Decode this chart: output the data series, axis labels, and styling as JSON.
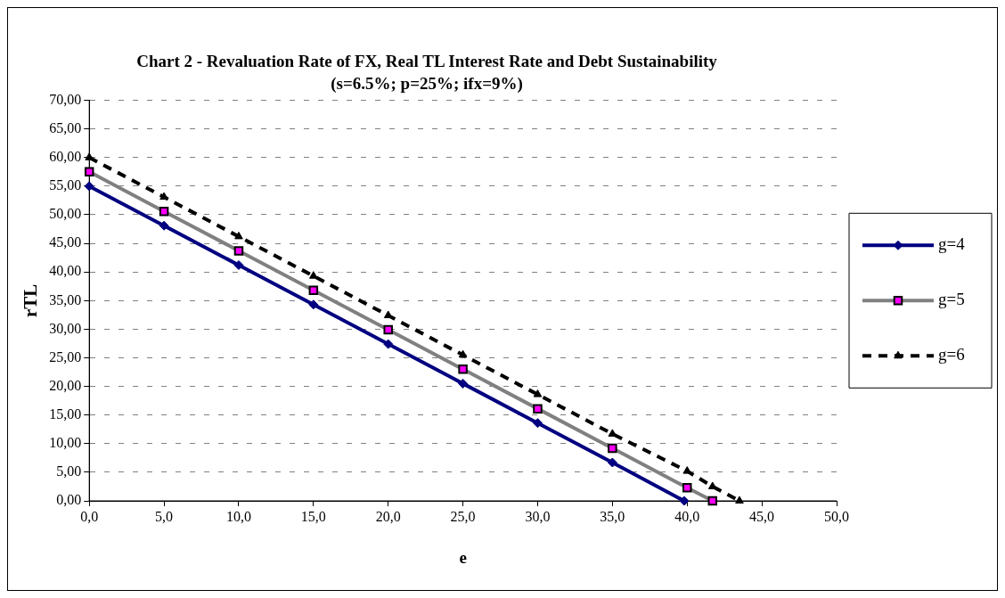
{
  "chart_data": {
    "type": "line",
    "title": "Chart 2 - Revaluation Rate of FX, Real TL Interest Rate and Debt Sustainability",
    "subtitle": "(s=6.5%; p=25%; ifx=9%)",
    "xlabel": "e",
    "ylabel": "rTL",
    "xlim": [
      0,
      50
    ],
    "xticks": [
      {
        "value": 0,
        "label": "0,0"
      },
      {
        "value": 5,
        "label": "5,0"
      },
      {
        "value": 10,
        "label": "10,0"
      },
      {
        "value": 15,
        "label": "15,0"
      },
      {
        "value": 20,
        "label": "20,0"
      },
      {
        "value": 25,
        "label": "25,0"
      },
      {
        "value": 30,
        "label": "30,0"
      },
      {
        "value": 35,
        "label": "35,0"
      },
      {
        "value": 40,
        "label": "40,0"
      },
      {
        "value": 45,
        "label": "45,0"
      },
      {
        "value": 50,
        "label": "50,0"
      }
    ],
    "ylim": [
      0,
      70
    ],
    "yticks": [
      {
        "value": 0,
        "label": "0,00"
      },
      {
        "value": 5,
        "label": "5,00"
      },
      {
        "value": 10,
        "label": "10,00"
      },
      {
        "value": 15,
        "label": "15,00"
      },
      {
        "value": 20,
        "label": "20,00"
      },
      {
        "value": 25,
        "label": "25,00"
      },
      {
        "value": 30,
        "label": "30,00"
      },
      {
        "value": 35,
        "label": "35,00"
      },
      {
        "value": 40,
        "label": "40,00"
      },
      {
        "value": 45,
        "label": "45,00"
      },
      {
        "value": 50,
        "label": "50,00"
      },
      {
        "value": 55,
        "label": "55,00"
      },
      {
        "value": 60,
        "label": "60,00"
      },
      {
        "value": 65,
        "label": "65,00"
      },
      {
        "value": 70,
        "label": "70,00"
      }
    ],
    "grid": "y",
    "legend": "right",
    "series": [
      {
        "name": "g=4",
        "color": "#000080",
        "marker": "diamond",
        "line_style": "solid",
        "x": [
          0,
          5,
          10,
          15,
          20,
          25,
          30,
          35,
          39.8
        ],
        "values": [
          55,
          48.1,
          41.2,
          34.3,
          27.4,
          20.5,
          13.6,
          6.7,
          0
        ]
      },
      {
        "name": "g=5",
        "color": "#808080",
        "marker": "square",
        "line_style": "solid",
        "x": [
          0,
          5,
          10,
          15,
          20,
          25,
          30,
          35,
          40,
          41.7
        ],
        "values": [
          57.5,
          50.6,
          43.7,
          36.8,
          29.9,
          23,
          16.1,
          9.2,
          2.3,
          0
        ]
      },
      {
        "name": "g=6",
        "color": "#000000",
        "marker": "triangle",
        "line_style": "dashed",
        "x": [
          0,
          5,
          10,
          15,
          20,
          25,
          30,
          35,
          40,
          41.7,
          43.5
        ],
        "values": [
          60,
          53.1,
          46.2,
          39.3,
          32.4,
          25.5,
          18.6,
          11.7,
          5.2,
          2.5,
          0
        ]
      }
    ]
  }
}
